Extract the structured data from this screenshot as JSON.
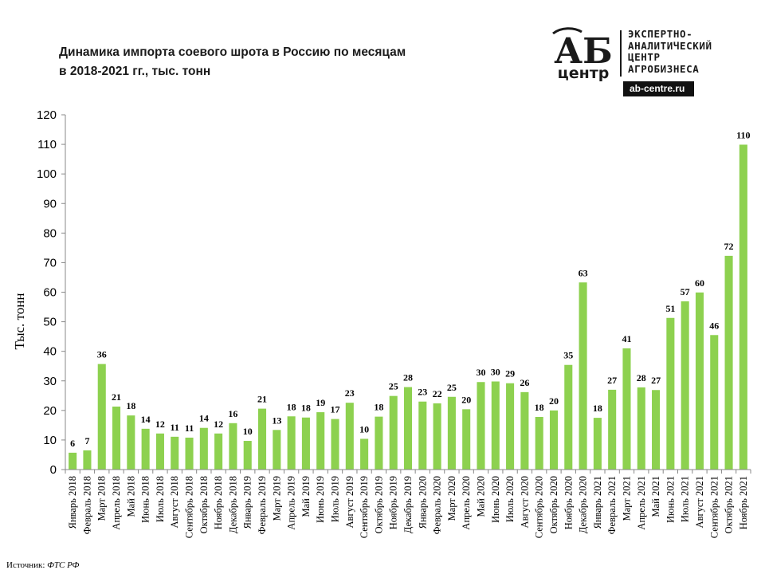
{
  "title": {
    "line1": "Динамика импорта соевого шрота в Россию по месяцам",
    "line2": "в 2018-2021 гг., тыс. тонн"
  },
  "logo": {
    "mark": "АБ",
    "mark_sub": "центр",
    "lines": [
      "ЭКСПЕРТНО-",
      "АНАЛИТИЧЕСКИЙ",
      "ЦЕНТР",
      "АГРОБИЗНЕСА"
    ],
    "site": "ab-centre.ru"
  },
  "source": {
    "label": "Источник:",
    "value": "ФТС РФ"
  },
  "colors": {
    "bar": "#8dd14f",
    "axis": "#888888"
  },
  "chart_data": {
    "type": "bar",
    "ylabel": "Тыс. тонн",
    "xlabel": "",
    "ylim": [
      0,
      120
    ],
    "yticks": [
      0,
      10,
      20,
      30,
      40,
      50,
      60,
      70,
      80,
      90,
      100,
      110,
      120
    ],
    "grid": false,
    "legend": "none",
    "categories": [
      "Январь 2018",
      "Февраль 2018",
      "Март 2018",
      "Апрель 2018",
      "Май 2018",
      "Июнь 2018",
      "Июль 2018",
      "Август 2018",
      "Сентябрь 2018",
      "Октябрь 2018",
      "Ноябрь 2018",
      "Декабрь 2018",
      "Январь 2019",
      "Февраль 2019",
      "Март 2019",
      "Апрель 2019",
      "Май 2019",
      "Июнь 2019",
      "Июль 2019",
      "Август 2019",
      "Сентябрь 2019",
      "Октябрь 2019",
      "Ноябрь 2019",
      "Декабрь 2019",
      "Январь 2020",
      "Февраль 2020",
      "Март 2020",
      "Апрель 2020",
      "Май 2020",
      "Июнь 2020",
      "Июль 2020",
      "Август 2020",
      "Сентябрь 2020",
      "Октябрь 2020",
      "Ноябрь 2020",
      "Декабрь 2020",
      "Январь 2021",
      "Февраль 2021",
      "Март 2021",
      "Апрель 2021",
      "Май 2021",
      "Июнь 2021",
      "Июль 2021",
      "Август 2021",
      "Сентябрь 2021",
      "Октябрь 2021",
      "Ноябрь 2021"
    ],
    "values": [
      5.7,
      6.5,
      35.7,
      21.3,
      18.3,
      13.8,
      12.2,
      11.1,
      10.8,
      14.1,
      12.2,
      15.7,
      9.7,
      20.6,
      13.4,
      18.0,
      17.6,
      19.4,
      17.1,
      22.6,
      10.4,
      17.9,
      24.9,
      27.9,
      23.0,
      22.4,
      24.6,
      20.4,
      29.6,
      29.8,
      29.2,
      26.2,
      17.8,
      20.0,
      35.4,
      63.3,
      17.5,
      27.0,
      41.0,
      27.8,
      26.9,
      51.3,
      56.9,
      59.9,
      45.5,
      72.3,
      109.9
    ],
    "labels": [
      "6",
      "7",
      "36",
      "21",
      "18",
      "14",
      "12",
      "11",
      "11",
      "14",
      "12",
      "16",
      "10",
      "21",
      "13",
      "18",
      "18",
      "19",
      "17",
      "23",
      "10",
      "18",
      "25",
      "28",
      "23",
      "22",
      "25",
      "20",
      "30",
      "30",
      "29",
      "26",
      "18",
      "20",
      "35",
      "63",
      "18",
      "27",
      "41",
      "28",
      "27",
      "51",
      "57",
      "60",
      "46",
      "72",
      "110"
    ]
  }
}
